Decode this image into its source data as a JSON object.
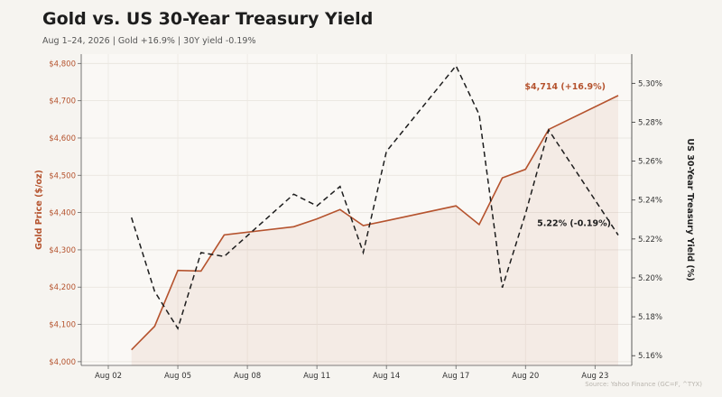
{
  "header": {
    "title": "Gold vs. US 30-Year Treasury Yield",
    "subtitle": "Aug 1–24, 2026  |  Gold +16.9%  |  30Y yield -0.19%"
  },
  "chart_data": {
    "type": "line",
    "title": "Gold vs. US 30-Year Treasury Yield",
    "subtitle": "Aug 1–24, 2026  |  Gold +16.9%  |  30Y yield -0.19%",
    "x_label": "",
    "x_ticks": [
      "Aug 02",
      "Aug 05",
      "Aug 08",
      "Aug 11",
      "Aug 14",
      "Aug 17",
      "Aug 20",
      "Aug 23"
    ],
    "x_range": [
      "2026-08-02",
      "2026-08-24"
    ],
    "y_left": {
      "label": "Gold Price ($/oz)",
      "range": [
        3990,
        4825
      ],
      "ticks": [
        "$4,000",
        "$4,100",
        "$4,200",
        "$4,300",
        "$4,400",
        "$4,500",
        "$4,600",
        "$4,700",
        "$4,800"
      ],
      "tick_values": [
        4000,
        4100,
        4200,
        4300,
        4400,
        4500,
        4600,
        4700,
        4800
      ],
      "color": "#b5532e"
    },
    "y_right": {
      "label": "US 30-Year Treasury Yield (%)",
      "range": [
        5.155,
        5.315
      ],
      "ticks": [
        "5.16%",
        "5.18%",
        "5.20%",
        "5.22%",
        "5.24%",
        "5.26%",
        "5.28%",
        "5.30%"
      ],
      "tick_values": [
        5.16,
        5.18,
        5.2,
        5.22,
        5.24,
        5.26,
        5.28,
        5.3
      ],
      "color": "#1d1d1d"
    },
    "series": [
      {
        "name": "Gold",
        "axis": "left",
        "color": "#b5532e",
        "style": "solid-area",
        "x": [
          "2026-08-03",
          "2026-08-04",
          "2026-08-05",
          "2026-08-06",
          "2026-08-07",
          "2026-08-10",
          "2026-08-11",
          "2026-08-12",
          "2026-08-13",
          "2026-08-14",
          "2026-08-17",
          "2026-08-18",
          "2026-08-19",
          "2026-08-20",
          "2026-08-21",
          "2026-08-24"
        ],
        "values": [
          4032,
          4095,
          4245,
          4243,
          4340,
          4362,
          4383,
          4408,
          4365,
          4378,
          4418,
          4368,
          4493,
          4516,
          4623,
          4714
        ]
      },
      {
        "name": "30Y yield",
        "axis": "right",
        "color": "#1d1d1d",
        "style": "dashed",
        "x": [
          "2026-08-03",
          "2026-08-04",
          "2026-08-05",
          "2026-08-06",
          "2026-08-07",
          "2026-08-10",
          "2026-08-11",
          "2026-08-12",
          "2026-08-13",
          "2026-08-14",
          "2026-08-17",
          "2026-08-18",
          "2026-08-19",
          "2026-08-20",
          "2026-08-21",
          "2026-08-24"
        ],
        "values": [
          5.231,
          5.193,
          5.174,
          5.213,
          5.211,
          5.243,
          5.237,
          5.247,
          5.213,
          5.265,
          5.309,
          5.284,
          5.195,
          5.233,
          5.276,
          5.222
        ]
      }
    ],
    "annotations": [
      {
        "text": "$4,714 (+16.9%)",
        "series": "Gold",
        "color": "#b5532e"
      },
      {
        "text": "5.22% (-0.19%)",
        "series": "30Y yield",
        "color": "#1d1d1d"
      }
    ],
    "grid": true,
    "source": "Source: Yahoo Finance (GC=F, ^TYX)"
  }
}
